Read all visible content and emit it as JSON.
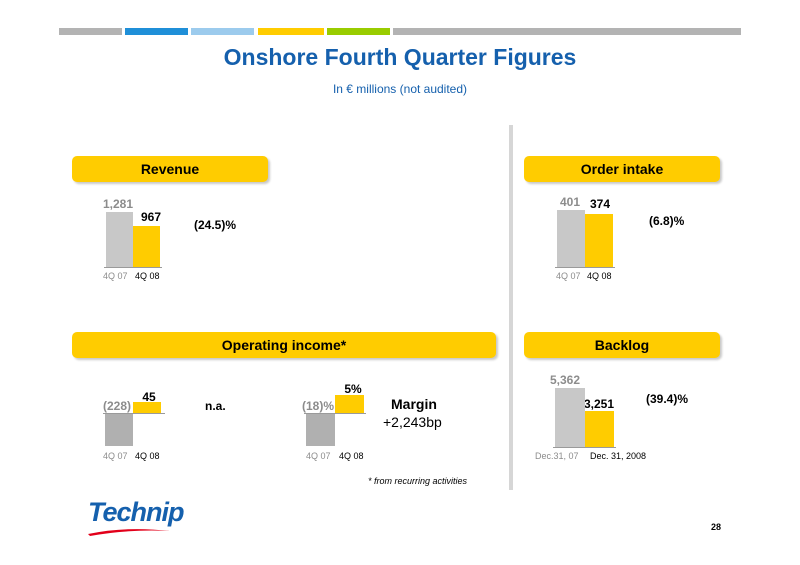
{
  "header_colors": [
    "#b3b3b3",
    "#1f8fd8",
    "#9ccbed",
    "#ffcc00",
    "#99cc00",
    "#b3b3b3"
  ],
  "title": "Onshore Fourth Quarter Figures",
  "subtitle": "In € millions (not audited)",
  "panels": {
    "revenue": {
      "label": "Revenue",
      "change": "(24.5)%"
    },
    "order_intake": {
      "label": "Order intake",
      "change": "(6.8)%"
    },
    "operating_income": {
      "label": "Operating income*",
      "na": "n.a.",
      "margin_label": "Margin",
      "margin_value": "+2,243bp"
    },
    "backlog": {
      "label": "Backlog",
      "change": "(39.4)%"
    }
  },
  "chart_data": [
    {
      "type": "bar",
      "title": "Revenue",
      "categories": [
        "4Q 07",
        "4Q 08"
      ],
      "values": [
        1281,
        967
      ],
      "value_labels": [
        "1,281",
        "967"
      ],
      "colors": [
        "#c8c8c8",
        "#ffcc00"
      ]
    },
    {
      "type": "bar",
      "title": "Order intake",
      "categories": [
        "4Q 07",
        "4Q 08"
      ],
      "values": [
        401,
        374
      ],
      "value_labels": [
        "401",
        "374"
      ],
      "colors": [
        "#c8c8c8",
        "#ffcc00"
      ]
    },
    {
      "type": "bar",
      "title": "Operating income*",
      "categories": [
        "4Q 07",
        "4Q 08"
      ],
      "values": [
        -228,
        45
      ],
      "value_labels": [
        "(228)",
        "45"
      ],
      "colors": [
        "#b0b0b0",
        "#ffcc00"
      ]
    },
    {
      "type": "bar",
      "categories": [
        "4Q 07",
        "4Q 08"
      ],
      "values": [
        -18,
        5
      ],
      "value_labels": [
        "(18)%",
        "5%"
      ],
      "colors": [
        "#b0b0b0",
        "#ffcc00"
      ]
    },
    {
      "type": "bar",
      "title": "Backlog",
      "categories": [
        "Dec.31, 07",
        "Dec. 31, 2008"
      ],
      "values": [
        5362,
        3251
      ],
      "value_labels": [
        "5,362",
        "3,251"
      ],
      "colors": [
        "#c8c8c8",
        "#ffcc00"
      ]
    }
  ],
  "footnote": "* from recurring activities",
  "logo_text": "Technip",
  "page_number": "28"
}
